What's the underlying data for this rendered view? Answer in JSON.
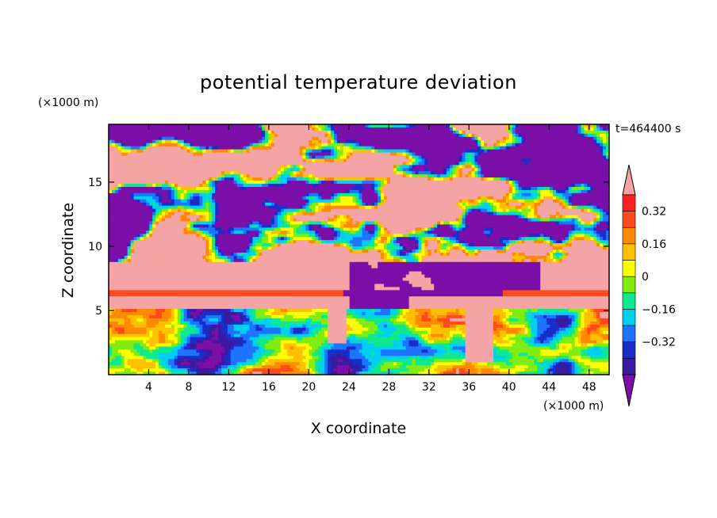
{
  "chart_data": {
    "type": "heatmap",
    "title": "potential temperature deviation",
    "xlabel": "X coordinate",
    "ylabel": "Z coordinate",
    "x_unit": "(×1000 m)",
    "y_unit": "(×1000 m)",
    "time_label": "t=464400 s",
    "xlim": [
      0,
      50
    ],
    "ylim": [
      0,
      19.5
    ],
    "x_ticks": [
      4,
      8,
      12,
      16,
      20,
      24,
      28,
      32,
      36,
      40,
      44,
      48
    ],
    "y_ticks": [
      5,
      10,
      15
    ],
    "colorbar": {
      "levels": [
        -0.4,
        -0.32,
        -0.24,
        -0.16,
        -0.08,
        0,
        0.08,
        0.16,
        0.24,
        0.32,
        0.4
      ],
      "labeled": [
        0.32,
        0.16,
        0,
        -0.16,
        -0.32
      ],
      "labels": [
        "0.32",
        "0.16",
        "0",
        "−0.16",
        "−0.32"
      ],
      "colors": [
        "#7b0fa8",
        "#3a1aa0",
        "#1a2dc8",
        "#1f74ff",
        "#00d0f0",
        "#10e890",
        "#80ec10",
        "#ffff00",
        "#ffc000",
        "#ff8a00",
        "#ff4a20",
        "#ff2020",
        "#f4a4a4"
      ],
      "extend": "both"
    },
    "layers": [
      {
        "z_range": [
          0,
          5
        ],
        "description_value": "mixed values"
      },
      {
        "z_range": [
          5,
          19.5
        ],
        "description_value": "alternating ±"
      }
    ]
  }
}
